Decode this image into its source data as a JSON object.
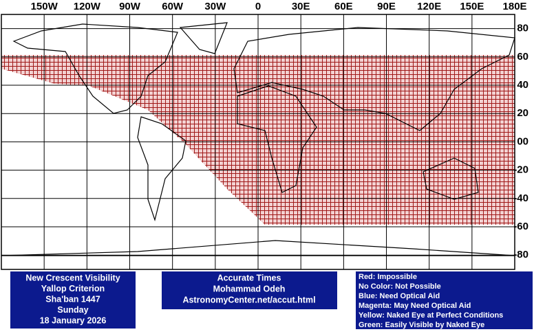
{
  "map": {
    "lon_labels": [
      "150W",
      "120W",
      "90W",
      "60W",
      "30W",
      "0",
      "30E",
      "60E",
      "90E",
      "120E",
      "150E",
      "180E"
    ],
    "lat_labels": [
      "80",
      "60",
      "40",
      "20",
      "00",
      "-20",
      "-40",
      "-60",
      "-80"
    ]
  },
  "info": {
    "left": [
      "New Crescent Visibility",
      "Yallop Criterion",
      "Sha'ban 1447",
      "Sunday",
      "18 January 2026"
    ],
    "center": [
      "Accurate Times",
      "Mohammad Odeh",
      "AstronomyCenter.net/accut.html"
    ],
    "legend": [
      "Red: Impossible",
      "No Color: Not Possible",
      "Blue: Need Optical Aid",
      "Magenta: May Need Optical Aid",
      "Yellow: Naked Eye at Perfect Conditions",
      "Green: Easily Visible by Naked Eye"
    ]
  }
}
